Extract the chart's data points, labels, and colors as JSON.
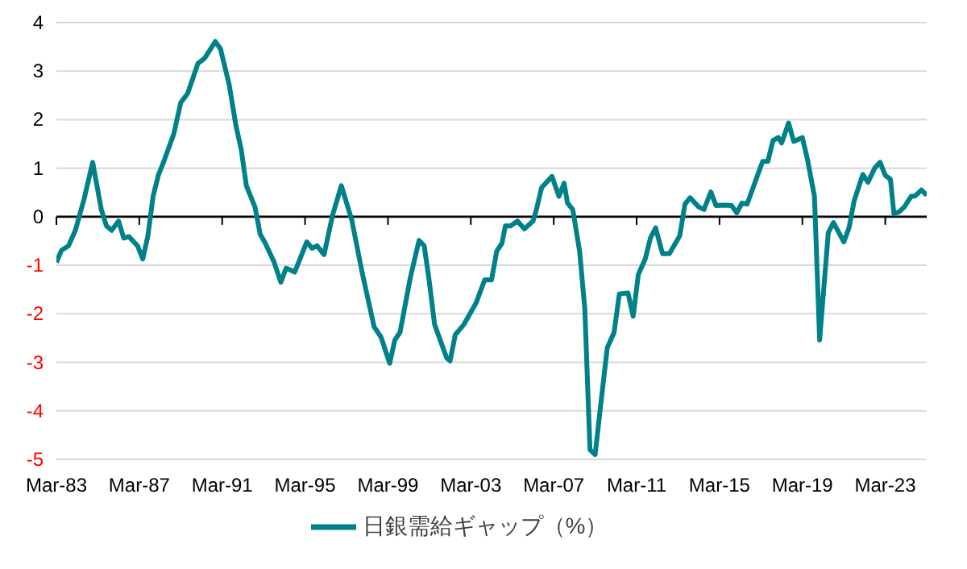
{
  "chart_data": {
    "type": "line",
    "x": [
      "1983-03",
      "1983-06",
      "1983-10",
      "1984-02",
      "1984-07",
      "1984-12",
      "1985-05",
      "1985-08",
      "1985-11",
      "1986-03",
      "1986-06",
      "1986-09",
      "1987-02",
      "1987-05",
      "1987-08",
      "1987-11",
      "1988-02",
      "1988-05",
      "1988-11",
      "1989-03",
      "1989-07",
      "1990-01",
      "1990-05",
      "1990-11",
      "1991-02",
      "1991-07",
      "1991-11",
      "1992-02",
      "1992-05",
      "1992-10",
      "1993-01",
      "1993-04",
      "1993-09",
      "1994-01",
      "1994-04",
      "1994-09",
      "1995-04",
      "1995-07",
      "1995-10",
      "1996-02",
      "1996-07",
      "1996-12",
      "1997-06",
      "1997-12",
      "1998-07",
      "1998-11",
      "1999-04",
      "1999-07",
      "1999-10",
      "2000-04",
      "2000-09",
      "2000-12",
      "2001-03",
      "2001-06",
      "2002-01",
      "2002-03",
      "2002-06",
      "2002-11",
      "2003-06",
      "2003-11",
      "2004-03",
      "2004-06",
      "2004-09",
      "2004-11",
      "2005-02",
      "2005-06",
      "2005-10",
      "2006-03",
      "2006-05",
      "2006-08",
      "2007-02",
      "2007-06",
      "2007-09",
      "2007-11",
      "2008-02",
      "2008-06",
      "2008-09",
      "2008-12",
      "2009-03",
      "2009-06",
      "2009-10",
      "2010-02",
      "2010-05",
      "2010-10",
      "2011-01",
      "2011-04",
      "2011-08",
      "2011-11",
      "2012-02",
      "2012-06",
      "2012-10",
      "2013-04",
      "2013-07",
      "2013-10",
      "2014-03",
      "2014-06",
      "2014-10",
      "2015-01",
      "2015-06",
      "2015-10",
      "2016-01",
      "2016-04",
      "2016-07",
      "2017-01",
      "2017-04",
      "2017-07",
      "2017-10",
      "2018-01",
      "2018-03",
      "2018-07",
      "2018-10",
      "2019-03",
      "2019-06",
      "2019-10",
      "2020-01",
      "2020-06",
      "2020-09",
      "2021-03",
      "2021-06",
      "2021-09",
      "2022-02",
      "2022-05",
      "2022-09",
      "2022-12",
      "2023-03",
      "2023-06",
      "2023-08",
      "2023-11",
      "2024-02",
      "2024-06",
      "2024-08",
      "2024-12",
      "2025-03"
    ],
    "series": [
      {
        "name": "日銀需給ギャップ（%）",
        "color": "#00818a",
        "values": [
          -0.94,
          -0.69,
          -0.6,
          -0.28,
          0.36,
          1.12,
          0.15,
          -0.19,
          -0.28,
          -0.09,
          -0.44,
          -0.41,
          -0.6,
          -0.87,
          -0.39,
          0.42,
          0.85,
          1.12,
          1.71,
          2.35,
          2.54,
          3.16,
          3.27,
          3.61,
          3.46,
          2.73,
          1.87,
          1.39,
          0.64,
          0.2,
          -0.36,
          -0.55,
          -0.93,
          -1.35,
          -1.06,
          -1.14,
          -0.52,
          -0.65,
          -0.6,
          -0.78,
          0.04,
          0.64,
          -0.06,
          -1.14,
          -2.27,
          -2.48,
          -3.02,
          -2.54,
          -2.38,
          -1.25,
          -0.49,
          -0.6,
          -1.35,
          -2.22,
          -2.91,
          -2.97,
          -2.43,
          -2.22,
          -1.78,
          -1.3,
          -1.3,
          -0.71,
          -0.55,
          -0.19,
          -0.19,
          -0.09,
          -0.25,
          -0.09,
          0.15,
          0.6,
          0.83,
          0.42,
          0.69,
          0.28,
          0.15,
          -0.71,
          -1.89,
          -4.8,
          -4.9,
          -3.94,
          -2.7,
          -2.38,
          -1.59,
          -1.57,
          -2.05,
          -1.19,
          -0.87,
          -0.44,
          -0.23,
          -0.76,
          -0.76,
          -0.39,
          0.26,
          0.39,
          0.2,
          0.15,
          0.51,
          0.23,
          0.24,
          0.23,
          0.08,
          0.28,
          0.26,
          0.85,
          1.14,
          1.14,
          1.57,
          1.63,
          1.52,
          1.93,
          1.55,
          1.63,
          1.17,
          0.42,
          -2.54,
          -0.33,
          -0.12,
          -0.52,
          -0.23,
          0.33,
          0.87,
          0.71,
          1.01,
          1.12,
          0.85,
          0.77,
          0.06,
          0.1,
          0.2,
          0.42,
          0.42,
          0.55,
          0.44
        ]
      }
    ],
    "xlim": [
      "1983-03",
      "2025-03"
    ],
    "xticks": [
      {
        "value": "1983-03",
        "label": "Mar-83"
      },
      {
        "value": "1987-03",
        "label": "Mar-87"
      },
      {
        "value": "1991-03",
        "label": "Mar-91"
      },
      {
        "value": "1995-03",
        "label": "Mar-95"
      },
      {
        "value": "1999-03",
        "label": "Mar-99"
      },
      {
        "value": "2003-03",
        "label": "Mar-03"
      },
      {
        "value": "2007-03",
        "label": "Mar-07"
      },
      {
        "value": "2011-03",
        "label": "Mar-11"
      },
      {
        "value": "2015-03",
        "label": "Mar-15"
      },
      {
        "value": "2019-03",
        "label": "Mar-19"
      },
      {
        "value": "2023-03",
        "label": "Mar-23"
      }
    ],
    "ylim": [
      -5,
      4
    ],
    "yticks": [
      -5,
      -4,
      -3,
      -2,
      -1,
      0,
      1,
      2,
      3,
      4
    ],
    "grid": "y",
    "legend": "bottom",
    "marker": "none",
    "line_style": "solid"
  }
}
